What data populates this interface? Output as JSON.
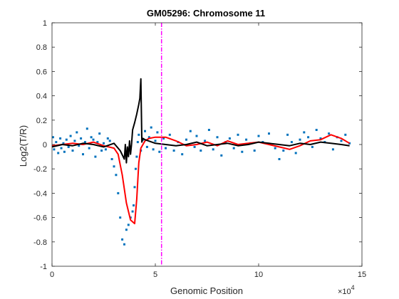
{
  "chart_data": {
    "type": "scatter",
    "title": "GM05296: Chromosome 11",
    "xlabel": "Genomic Position",
    "ylabel": "Log2(T/R)",
    "x_exponent_label": "×10",
    "x_exponent": "4",
    "xlim": [
      0,
      15
    ],
    "ylim": [
      -1,
      1
    ],
    "xticks": [
      0,
      5,
      10,
      15
    ],
    "yticks": [
      -1,
      -0.8,
      -0.6,
      -0.4,
      -0.2,
      0,
      0.2,
      0.4,
      0.6,
      0.8,
      1
    ],
    "xtick_labels": [
      "0",
      "5",
      "10",
      "15"
    ],
    "ytick_labels": [
      "-1",
      "-0.8",
      "-0.6",
      "-0.4",
      "-0.2",
      "0",
      "0.2",
      "0.4",
      "0.6",
      "0.8",
      "1"
    ],
    "grid": false,
    "colors": {
      "points": "#0072bd",
      "smooth": "#ff0000",
      "segment": "#000000",
      "vline": "#ff00ff"
    },
    "vertical_line_x": 5.3,
    "series": [
      {
        "kind": "points",
        "x": [
          0.05,
          0.1,
          0.2,
          0.3,
          0.4,
          0.45,
          0.55,
          0.6,
          0.7,
          0.8,
          0.9,
          1.0,
          1.1,
          1.2,
          1.3,
          1.4,
          1.5,
          1.6,
          1.7,
          1.8,
          1.9,
          2.0,
          2.1,
          2.2,
          2.3,
          2.4,
          2.5,
          2.6,
          2.7,
          2.8,
          2.9,
          3.0,
          3.1,
          3.2,
          3.3,
          3.4,
          3.5,
          3.6,
          3.7,
          3.8,
          3.9,
          3.95,
          4.0,
          4.05,
          4.1,
          4.15,
          4.2,
          4.3,
          4.4,
          4.5,
          4.6,
          4.7,
          4.8,
          4.9,
          5.0,
          5.1,
          5.2,
          5.4,
          5.5,
          5.7,
          5.9,
          6.1,
          6.3,
          6.5,
          6.7,
          6.9,
          7.0,
          7.2,
          7.4,
          7.6,
          7.8,
          8.0,
          8.2,
          8.4,
          8.6,
          8.8,
          9.0,
          9.2,
          9.4,
          9.6,
          9.8,
          10.0,
          10.2,
          10.5,
          10.8,
          11.0,
          11.2,
          11.4,
          11.6,
          11.8,
          12.0,
          12.2,
          12.4,
          12.6,
          12.8,
          13.0,
          13.2,
          13.4,
          13.6,
          13.8,
          14.0,
          14.2,
          14.4
        ],
        "y": [
          0.06,
          -0.04,
          0.02,
          -0.07,
          0.05,
          -0.03,
          0.01,
          -0.06,
          0.04,
          -0.02,
          0.07,
          -0.05,
          0.03,
          0.1,
          -0.01,
          0.05,
          -0.08,
          0.02,
          0.13,
          -0.03,
          0.06,
          0.04,
          -0.1,
          0.02,
          0.09,
          -0.05,
          0.01,
          -0.04,
          0.05,
          0.03,
          -0.12,
          -0.18,
          -0.25,
          -0.4,
          -0.6,
          -0.78,
          -0.82,
          -0.7,
          -0.66,
          -0.6,
          -0.55,
          -0.5,
          -0.35,
          -0.2,
          -0.1,
          0.02,
          0.08,
          -0.05,
          0.04,
          0.11,
          -0.02,
          0.06,
          0.14,
          -0.04,
          0.03,
          0.1,
          -0.06,
          0.05,
          -0.03,
          0.08,
          -0.05,
          0.02,
          -0.08,
          0.04,
          0.11,
          -0.02,
          0.07,
          -0.05,
          0.03,
          0.12,
          -0.04,
          0.06,
          -0.09,
          0.02,
          0.05,
          -0.03,
          0.08,
          -0.06,
          0.04,
          0.01,
          -0.05,
          0.07,
          0.02,
          0.09,
          -0.03,
          -0.12,
          -0.05,
          0.08,
          0.02,
          -0.07,
          0.04,
          0.1,
          0.06,
          -0.02,
          0.12,
          0.05,
          0.02,
          0.09,
          -0.04,
          0.06,
          0.03,
          0.08,
          0.01
        ]
      },
      {
        "kind": "smooth",
        "x": [
          0,
          0.5,
          1.0,
          1.5,
          2.0,
          2.5,
          3.0,
          3.2,
          3.4,
          3.6,
          3.8,
          4.0,
          4.1,
          4.2,
          4.3,
          4.4,
          4.5,
          4.7,
          5.0,
          5.5,
          6.0,
          6.5,
          7.0,
          7.5,
          8.0,
          8.5,
          9.0,
          9.5,
          10.0,
          10.5,
          11.0,
          11.5,
          12.0,
          12.5,
          13.0,
          13.5,
          14.0,
          14.4
        ],
        "y": [
          -0.01,
          0.0,
          0.01,
          0.0,
          0.02,
          -0.01,
          -0.03,
          -0.08,
          -0.25,
          -0.48,
          -0.62,
          -0.65,
          -0.45,
          -0.15,
          -0.03,
          0.0,
          0.03,
          0.05,
          0.06,
          0.06,
          0.03,
          -0.01,
          0.0,
          0.02,
          -0.01,
          0.03,
          0.0,
          0.01,
          0.02,
          0.0,
          -0.02,
          -0.04,
          -0.01,
          0.03,
          0.04,
          0.08,
          0.05,
          0.01
        ]
      },
      {
        "kind": "segment",
        "x": [
          0,
          0.5,
          1.0,
          1.5,
          2.0,
          2.5,
          3.0,
          3.3,
          3.5,
          3.55,
          3.6,
          3.65,
          3.7,
          3.75,
          3.8,
          3.85,
          3.9,
          4.0,
          4.1,
          4.2,
          4.25,
          4.3,
          4.35,
          4.4,
          4.5,
          5.0,
          5.5,
          6.0,
          6.5,
          7.0,
          7.5,
          8.0,
          8.5,
          9.0,
          9.5,
          10.0,
          10.5,
          11.0,
          11.5,
          12.0,
          12.5,
          13.0,
          13.5,
          14.0,
          14.4
        ],
        "y": [
          -0.02,
          0.0,
          -0.01,
          0.01,
          0.0,
          -0.02,
          0.01,
          -0.05,
          -0.12,
          0.0,
          -0.15,
          -0.02,
          -0.1,
          0.03,
          -0.08,
          0.0,
          0.12,
          0.18,
          0.25,
          0.33,
          0.38,
          0.54,
          0.02,
          0.05,
          0.04,
          0.01,
          0.0,
          -0.01,
          0.0,
          0.02,
          -0.01,
          0.0,
          0.01,
          -0.01,
          0.0,
          0.02,
          0.01,
          0.0,
          -0.01,
          0.01,
          0.0,
          0.02,
          0.01,
          0.0,
          -0.01
        ]
      }
    ]
  }
}
